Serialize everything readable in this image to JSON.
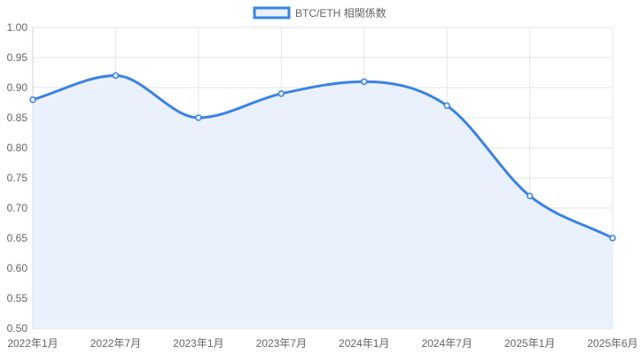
{
  "chart_data": {
    "type": "area",
    "categories": [
      "2022年1月",
      "2022年7月",
      "2023年1月",
      "2023年7月",
      "2024年1月",
      "2024年7月",
      "2025年1月",
      "2025年6月"
    ],
    "series": [
      {
        "name": "BTC/ETH 相関係数",
        "values": [
          0.88,
          0.92,
          0.85,
          0.89,
          0.91,
          0.87,
          0.72,
          0.65
        ],
        "color": "#3b82e6",
        "fill": "#eaf1fc"
      }
    ],
    "ylim": [
      0.5,
      1.0
    ],
    "yticks": [
      "0.50",
      "0.55",
      "0.60",
      "0.65",
      "0.70",
      "0.75",
      "0.80",
      "0.85",
      "0.90",
      "0.95",
      "1.00"
    ],
    "grid": true,
    "legend": "top-center"
  }
}
